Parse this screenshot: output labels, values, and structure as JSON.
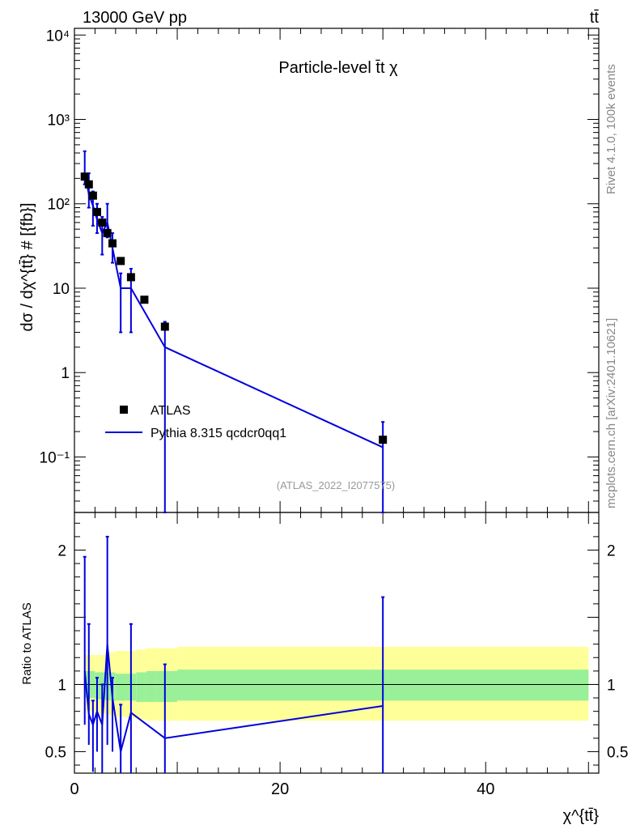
{
  "header": {
    "energy_label": "13000 GeV pp",
    "process_label": "tt̄"
  },
  "side_labels": {
    "rivet": "Rivet 4.1.0,  100k events",
    "mcplots": "mcplots.cern.ch [arXiv:2401.10621]"
  },
  "chart_data": {
    "type": "scatter",
    "title": "Particle-level t̄t χ",
    "analysis_label": "(ATLAS_2022_I2077575)",
    "xlabel": "χ^{tt̄}",
    "ylabel": "dσ / dχ^{tt̄} # [{fb}]",
    "ratio_ylabel": "Ratio to ATLAS",
    "xlim": [
      0,
      51
    ],
    "ylim_log": [
      0.022,
      12000
    ],
    "ratio_ylim": [
      0.34,
      2.28
    ],
    "main_yticks": [
      {
        "value": 10000,
        "label": "10⁴"
      },
      {
        "value": 1000,
        "label": "10³"
      },
      {
        "value": 100,
        "label": "10²"
      },
      {
        "value": 10,
        "label": "10"
      },
      {
        "value": 1,
        "label": "1"
      },
      {
        "value": 0.1,
        "label": "10⁻¹"
      }
    ],
    "xticks": [
      {
        "value": 0,
        "label": "0"
      },
      {
        "value": 20,
        "label": "20"
      },
      {
        "value": 40,
        "label": "40"
      }
    ],
    "ratio_yticks": [
      {
        "value": 0.5,
        "label": "0.5"
      },
      {
        "value": 1,
        "label": "1"
      },
      {
        "value": 2,
        "label": "2"
      }
    ],
    "legend": [
      {
        "label": "ATLAS",
        "color": "#000000",
        "marker": "square"
      },
      {
        "label": "Pythia 8.315 qcdcr0qq1",
        "color": "#0000dd",
        "marker": "line"
      }
    ],
    "data_series": {
      "name": "ATLAS",
      "x": [
        1.0,
        1.4,
        1.8,
        2.2,
        2.7,
        3.2,
        3.7,
        4.5,
        5.5,
        6.8,
        8.8,
        30.0
      ],
      "y": [
        210,
        170,
        125,
        80,
        60,
        45,
        34,
        21,
        13.5,
        7.3,
        3.5,
        0.16
      ]
    },
    "mc_series": {
      "name": "Pythia 8.315 qcdcr0qq1",
      "x": [
        1.0,
        1.4,
        1.8,
        2.2,
        2.7,
        3.2,
        3.7,
        4.5,
        5.5,
        8.8,
        30.0
      ],
      "y": [
        230,
        130,
        95,
        65,
        45,
        60,
        30,
        10,
        10,
        2.0,
        0.13
      ],
      "err_low": [
        170,
        90,
        55,
        45,
        25,
        40,
        20,
        3,
        3,
        0.001,
        0.001
      ],
      "err_high": [
        420,
        230,
        140,
        100,
        70,
        100,
        45,
        15,
        17,
        4.0,
        0.26
      ]
    },
    "ratio": {
      "x": [
        1.0,
        1.4,
        1.8,
        2.2,
        2.7,
        3.2,
        3.7,
        4.5,
        5.5,
        8.8,
        30.0
      ],
      "y": [
        1.1,
        0.78,
        0.7,
        0.8,
        0.7,
        1.3,
        0.9,
        0.5,
        0.79,
        0.6,
        0.84
      ],
      "err_low": [
        0.7,
        0.55,
        0.35,
        0.5,
        0.34,
        0.55,
        0.5,
        0.34,
        0.34,
        0.34,
        0.34
      ],
      "err_high": [
        1.95,
        1.45,
        0.88,
        1.05,
        1.0,
        2.1,
        1.05,
        0.85,
        1.45,
        1.15,
        1.65
      ]
    },
    "uncertainty_bands": {
      "x_edges": [
        1.0,
        2.0,
        3.0,
        4.0,
        5.0,
        6.0,
        7.0,
        8.0,
        10.0,
        50.0
      ],
      "inner_low": [
        0.9,
        0.89,
        0.88,
        0.88,
        0.88,
        0.87,
        0.87,
        0.87,
        0.88
      ],
      "inner_high": [
        1.1,
        1.09,
        1.09,
        1.08,
        1.08,
        1.09,
        1.1,
        1.1,
        1.11
      ],
      "outer_low": [
        0.8,
        0.78,
        0.77,
        0.76,
        0.75,
        0.74,
        0.73,
        0.73,
        0.73
      ],
      "outer_high": [
        1.22,
        1.22,
        1.24,
        1.25,
        1.25,
        1.26,
        1.27,
        1.27,
        1.28
      ]
    }
  }
}
